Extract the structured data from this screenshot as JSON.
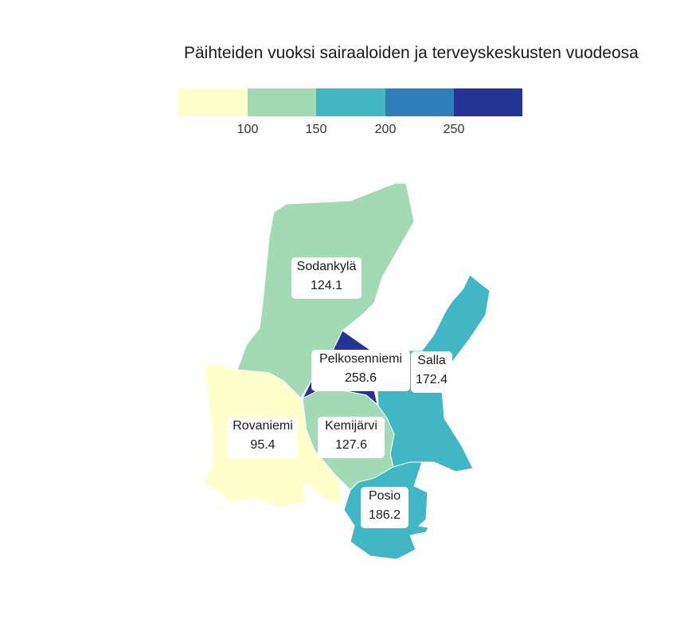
{
  "title": "Päihteiden vuoksi sairaaloiden ja terveyskeskusten vuodeosa",
  "legend": {
    "colors": [
      "#ffffcc",
      "#a1dab4",
      "#41b6c4",
      "#2c7fb8",
      "#253494"
    ],
    "ticks": [
      "100",
      "150",
      "200",
      "250"
    ]
  },
  "regions": [
    {
      "name": "Sodankylä",
      "value": "124.1",
      "color": "#a1dab4"
    },
    {
      "name": "Pelkosenniemi",
      "value": "258.6",
      "color": "#253494"
    },
    {
      "name": "Salla",
      "value": "172.4",
      "color": "#41b6c4"
    },
    {
      "name": "Rovaniemi",
      "value": "95.4",
      "color": "#ffffcc"
    },
    {
      "name": "Kemijärvi",
      "value": "127.6",
      "color": "#a1dab4"
    },
    {
      "name": "Posio",
      "value": "186.2",
      "color": "#41b6c4"
    }
  ]
}
